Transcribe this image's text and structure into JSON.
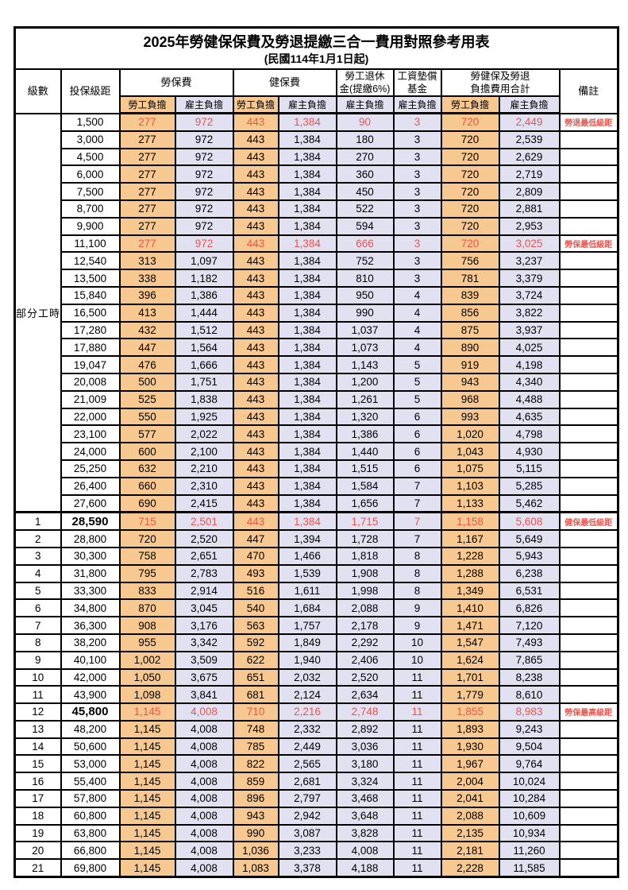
{
  "page": {
    "title": "2025年勞健保保費及勞退提繳三合一費用對照參考用表",
    "subtitle": "(民國114年1月1日起)"
  },
  "colors": {
    "employee_column_bg": "#f8c891",
    "employer_column_bg": "#e2e1f2",
    "highlight_red": "#f0524a",
    "grid_line": "#000000"
  },
  "header": {
    "level": "級數",
    "bracket": "投保級距",
    "labor_insurance": "勞保費",
    "health_insurance": "健保費",
    "pension_line1": "勞工退休",
    "pension_line2": "金(提繳6%)",
    "wage_fund_line1": "工資墊償",
    "wage_fund_line2": "基金",
    "total_line1": "勞健保及勞退",
    "total_line2": "負擔費用合計",
    "remark": "備註",
    "employee": "勞工負擔",
    "employer": "雇主負擔"
  },
  "part_time_label": "部分工時",
  "rows": [
    {
      "level": "",
      "part": true,
      "bracket": "1,500",
      "v": [
        "277",
        "972",
        "443",
        "1,384",
        "90",
        "3",
        "720",
        "2,449"
      ],
      "remark": "勞退最低級距",
      "red": true,
      "boldBracket": false
    },
    {
      "level": "",
      "part": true,
      "bracket": "3,000",
      "v": [
        "277",
        "972",
        "443",
        "1,384",
        "180",
        "3",
        "720",
        "2,539"
      ],
      "remark": "",
      "red": false,
      "boldBracket": false
    },
    {
      "level": "",
      "part": true,
      "bracket": "4,500",
      "v": [
        "277",
        "972",
        "443",
        "1,384",
        "270",
        "3",
        "720",
        "2,629"
      ],
      "remark": "",
      "red": false,
      "boldBracket": false
    },
    {
      "level": "",
      "part": true,
      "bracket": "6,000",
      "v": [
        "277",
        "972",
        "443",
        "1,384",
        "360",
        "3",
        "720",
        "2,719"
      ],
      "remark": "",
      "red": false,
      "boldBracket": false
    },
    {
      "level": "",
      "part": true,
      "bracket": "7,500",
      "v": [
        "277",
        "972",
        "443",
        "1,384",
        "450",
        "3",
        "720",
        "2,809"
      ],
      "remark": "",
      "red": false,
      "boldBracket": false
    },
    {
      "level": "",
      "part": true,
      "bracket": "8,700",
      "v": [
        "277",
        "972",
        "443",
        "1,384",
        "522",
        "3",
        "720",
        "2,881"
      ],
      "remark": "",
      "red": false,
      "boldBracket": false
    },
    {
      "level": "",
      "part": true,
      "bracket": "9,900",
      "v": [
        "277",
        "972",
        "443",
        "1,384",
        "594",
        "3",
        "720",
        "2,953"
      ],
      "remark": "",
      "red": false,
      "boldBracket": false
    },
    {
      "level": "",
      "part": true,
      "bracket": "11,100",
      "v": [
        "277",
        "972",
        "443",
        "1,384",
        "666",
        "3",
        "720",
        "3,025"
      ],
      "remark": "勞保最低級距",
      "red": true,
      "boldBracket": false
    },
    {
      "level": "",
      "part": true,
      "bracket": "12,540",
      "v": [
        "313",
        "1,097",
        "443",
        "1,384",
        "752",
        "3",
        "756",
        "3,237"
      ],
      "remark": "",
      "red": false,
      "boldBracket": false
    },
    {
      "level": "",
      "part": true,
      "bracket": "13,500",
      "v": [
        "338",
        "1,182",
        "443",
        "1,384",
        "810",
        "3",
        "781",
        "3,379"
      ],
      "remark": "",
      "red": false,
      "boldBracket": false
    },
    {
      "level": "",
      "part": true,
      "bracket": "15,840",
      "v": [
        "396",
        "1,386",
        "443",
        "1,384",
        "950",
        "4",
        "839",
        "3,724"
      ],
      "remark": "",
      "red": false,
      "boldBracket": false
    },
    {
      "level": "",
      "part": true,
      "bracket": "16,500",
      "v": [
        "413",
        "1,444",
        "443",
        "1,384",
        "990",
        "4",
        "856",
        "3,822"
      ],
      "remark": "",
      "red": false,
      "boldBracket": false
    },
    {
      "level": "",
      "part": true,
      "bracket": "17,280",
      "v": [
        "432",
        "1,512",
        "443",
        "1,384",
        "1,037",
        "4",
        "875",
        "3,937"
      ],
      "remark": "",
      "red": false,
      "boldBracket": false
    },
    {
      "level": "",
      "part": true,
      "bracket": "17,880",
      "v": [
        "447",
        "1,564",
        "443",
        "1,384",
        "1,073",
        "4",
        "890",
        "4,025"
      ],
      "remark": "",
      "red": false,
      "boldBracket": false
    },
    {
      "level": "",
      "part": true,
      "bracket": "19,047",
      "v": [
        "476",
        "1,666",
        "443",
        "1,384",
        "1,143",
        "5",
        "919",
        "4,198"
      ],
      "remark": "",
      "red": false,
      "boldBracket": false
    },
    {
      "level": "",
      "part": true,
      "bracket": "20,008",
      "v": [
        "500",
        "1,751",
        "443",
        "1,384",
        "1,200",
        "5",
        "943",
        "4,340"
      ],
      "remark": "",
      "red": false,
      "boldBracket": false
    },
    {
      "level": "",
      "part": true,
      "bracket": "21,009",
      "v": [
        "525",
        "1,838",
        "443",
        "1,384",
        "1,261",
        "5",
        "968",
        "4,488"
      ],
      "remark": "",
      "red": false,
      "boldBracket": false
    },
    {
      "level": "",
      "part": true,
      "bracket": "22,000",
      "v": [
        "550",
        "1,925",
        "443",
        "1,384",
        "1,320",
        "6",
        "993",
        "4,635"
      ],
      "remark": "",
      "red": false,
      "boldBracket": false
    },
    {
      "level": "",
      "part": true,
      "bracket": "23,100",
      "v": [
        "577",
        "2,022",
        "443",
        "1,384",
        "1,386",
        "6",
        "1,020",
        "4,798"
      ],
      "remark": "",
      "red": false,
      "boldBracket": false
    },
    {
      "level": "",
      "part": true,
      "bracket": "24,000",
      "v": [
        "600",
        "2,100",
        "443",
        "1,384",
        "1,440",
        "6",
        "1,043",
        "4,930"
      ],
      "remark": "",
      "red": false,
      "boldBracket": false
    },
    {
      "level": "",
      "part": true,
      "bracket": "25,250",
      "v": [
        "632",
        "2,210",
        "443",
        "1,384",
        "1,515",
        "6",
        "1,075",
        "5,115"
      ],
      "remark": "",
      "red": false,
      "boldBracket": false
    },
    {
      "level": "",
      "part": true,
      "bracket": "26,400",
      "v": [
        "660",
        "2,310",
        "443",
        "1,384",
        "1,584",
        "7",
        "1,103",
        "5,285"
      ],
      "remark": "",
      "red": false,
      "boldBracket": false
    },
    {
      "level": "",
      "part": true,
      "bracket": "27,600",
      "v": [
        "690",
        "2,415",
        "443",
        "1,384",
        "1,656",
        "7",
        "1,133",
        "5,462"
      ],
      "remark": "",
      "red": false,
      "boldBracket": false
    },
    {
      "level": "1",
      "part": false,
      "bracket": "28,590",
      "v": [
        "715",
        "2,501",
        "443",
        "1,384",
        "1,715",
        "7",
        "1,158",
        "5,608"
      ],
      "remark": "健保最低級距",
      "red": true,
      "boldBracket": true
    },
    {
      "level": "2",
      "part": false,
      "bracket": "28,800",
      "v": [
        "720",
        "2,520",
        "447",
        "1,394",
        "1,728",
        "7",
        "1,167",
        "5,649"
      ],
      "remark": "",
      "red": false,
      "boldBracket": false
    },
    {
      "level": "3",
      "part": false,
      "bracket": "30,300",
      "v": [
        "758",
        "2,651",
        "470",
        "1,466",
        "1,818",
        "8",
        "1,228",
        "5,943"
      ],
      "remark": "",
      "red": false,
      "boldBracket": false
    },
    {
      "level": "4",
      "part": false,
      "bracket": "31,800",
      "v": [
        "795",
        "2,783",
        "493",
        "1,539",
        "1,908",
        "8",
        "1,288",
        "6,238"
      ],
      "remark": "",
      "red": false,
      "boldBracket": false
    },
    {
      "level": "5",
      "part": false,
      "bracket": "33,300",
      "v": [
        "833",
        "2,914",
        "516",
        "1,611",
        "1,998",
        "8",
        "1,349",
        "6,531"
      ],
      "remark": "",
      "red": false,
      "boldBracket": false
    },
    {
      "level": "6",
      "part": false,
      "bracket": "34,800",
      "v": [
        "870",
        "3,045",
        "540",
        "1,684",
        "2,088",
        "9",
        "1,410",
        "6,826"
      ],
      "remark": "",
      "red": false,
      "boldBracket": false
    },
    {
      "level": "7",
      "part": false,
      "bracket": "36,300",
      "v": [
        "908",
        "3,176",
        "563",
        "1,757",
        "2,178",
        "9",
        "1,471",
        "7,120"
      ],
      "remark": "",
      "red": false,
      "boldBracket": false
    },
    {
      "level": "8",
      "part": false,
      "bracket": "38,200",
      "v": [
        "955",
        "3,342",
        "592",
        "1,849",
        "2,292",
        "10",
        "1,547",
        "7,493"
      ],
      "remark": "",
      "red": false,
      "boldBracket": false
    },
    {
      "level": "9",
      "part": false,
      "bracket": "40,100",
      "v": [
        "1,002",
        "3,509",
        "622",
        "1,940",
        "2,406",
        "10",
        "1,624",
        "7,865"
      ],
      "remark": "",
      "red": false,
      "boldBracket": false
    },
    {
      "level": "10",
      "part": false,
      "bracket": "42,000",
      "v": [
        "1,050",
        "3,675",
        "651",
        "2,032",
        "2,520",
        "11",
        "1,701",
        "8,238"
      ],
      "remark": "",
      "red": false,
      "boldBracket": false
    },
    {
      "level": "11",
      "part": false,
      "bracket": "43,900",
      "v": [
        "1,098",
        "3,841",
        "681",
        "2,124",
        "2,634",
        "11",
        "1,779",
        "8,610"
      ],
      "remark": "",
      "red": false,
      "boldBracket": false
    },
    {
      "level": "12",
      "part": false,
      "bracket": "45,800",
      "v": [
        "1,145",
        "4,008",
        "710",
        "2,216",
        "2,748",
        "11",
        "1,855",
        "8,983"
      ],
      "remark": "勞保最高級距",
      "red": true,
      "boldBracket": true
    },
    {
      "level": "13",
      "part": false,
      "bracket": "48,200",
      "v": [
        "1,145",
        "4,008",
        "748",
        "2,332",
        "2,892",
        "11",
        "1,893",
        "9,243"
      ],
      "remark": "",
      "red": false,
      "boldBracket": false
    },
    {
      "level": "14",
      "part": false,
      "bracket": "50,600",
      "v": [
        "1,145",
        "4,008",
        "785",
        "2,449",
        "3,036",
        "11",
        "1,930",
        "9,504"
      ],
      "remark": "",
      "red": false,
      "boldBracket": false
    },
    {
      "level": "15",
      "part": false,
      "bracket": "53,000",
      "v": [
        "1,145",
        "4,008",
        "822",
        "2,565",
        "3,180",
        "11",
        "1,967",
        "9,764"
      ],
      "remark": "",
      "red": false,
      "boldBracket": false
    },
    {
      "level": "16",
      "part": false,
      "bracket": "55,400",
      "v": [
        "1,145",
        "4,008",
        "859",
        "2,681",
        "3,324",
        "11",
        "2,004",
        "10,024"
      ],
      "remark": "",
      "red": false,
      "boldBracket": false
    },
    {
      "level": "17",
      "part": false,
      "bracket": "57,800",
      "v": [
        "1,145",
        "4,008",
        "896",
        "2,797",
        "3,468",
        "11",
        "2,041",
        "10,284"
      ],
      "remark": "",
      "red": false,
      "boldBracket": false
    },
    {
      "level": "18",
      "part": false,
      "bracket": "60,800",
      "v": [
        "1,145",
        "4,008",
        "943",
        "2,942",
        "3,648",
        "11",
        "2,088",
        "10,609"
      ],
      "remark": "",
      "red": false,
      "boldBracket": false
    },
    {
      "level": "19",
      "part": false,
      "bracket": "63,800",
      "v": [
        "1,145",
        "4,008",
        "990",
        "3,087",
        "3,828",
        "11",
        "2,135",
        "10,934"
      ],
      "remark": "",
      "red": false,
      "boldBracket": false
    },
    {
      "level": "20",
      "part": false,
      "bracket": "66,800",
      "v": [
        "1,145",
        "4,008",
        "1,036",
        "3,233",
        "4,008",
        "11",
        "2,181",
        "11,260"
      ],
      "remark": "",
      "red": false,
      "boldBracket": false
    },
    {
      "level": "21",
      "part": false,
      "bracket": "69,800",
      "v": [
        "1,145",
        "4,008",
        "1,083",
        "3,378",
        "4,188",
        "11",
        "2,228",
        "11,585"
      ],
      "remark": "",
      "red": false,
      "boldBracket": false
    }
  ]
}
